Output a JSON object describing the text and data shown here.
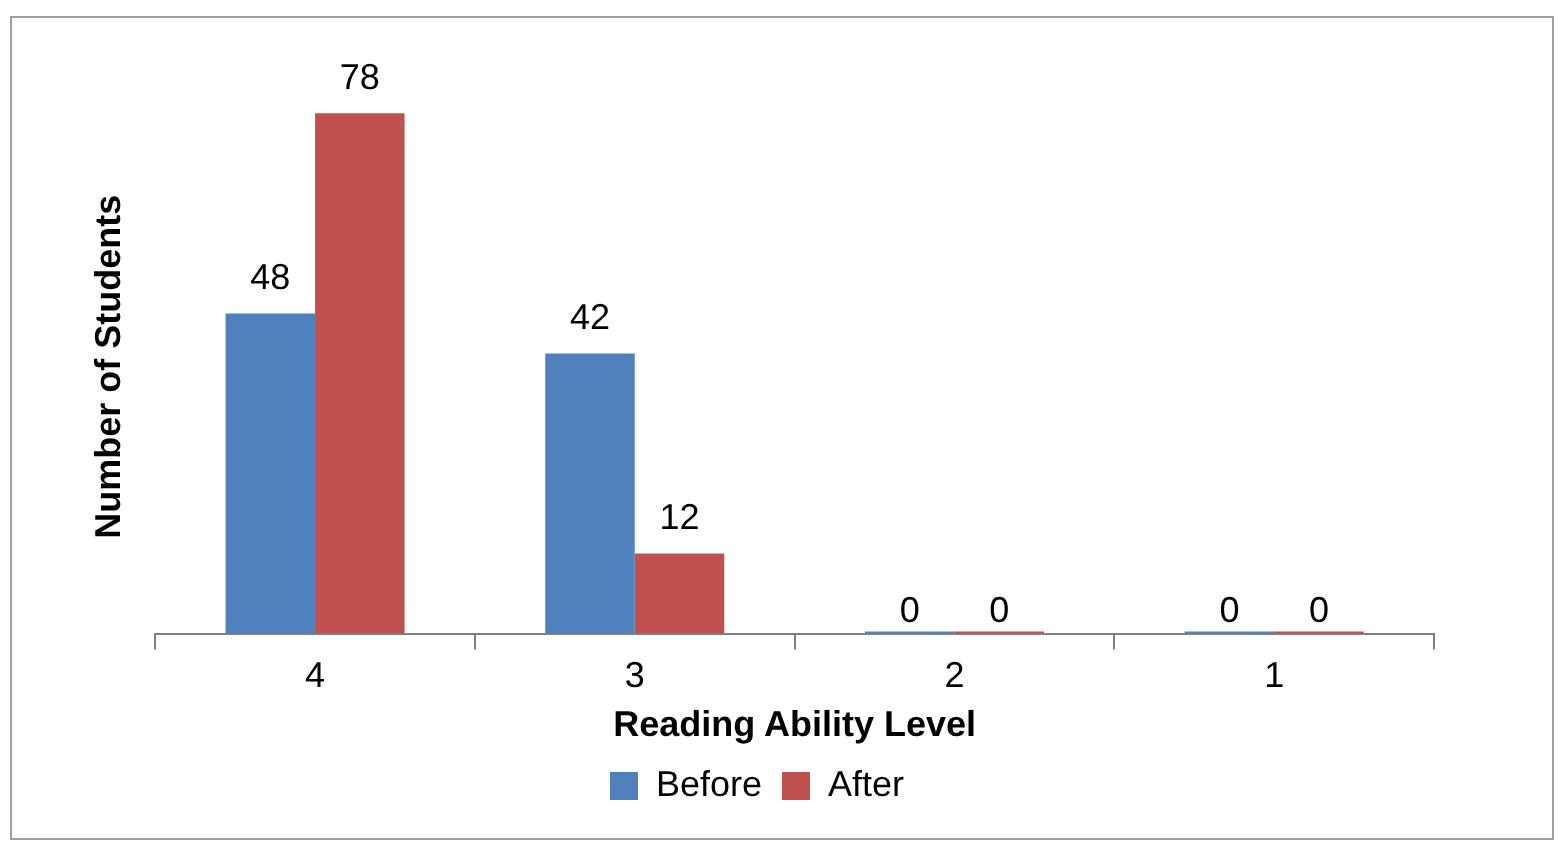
{
  "chart_data": {
    "type": "bar",
    "xlabel": "Reading Ability Level",
    "ylabel": "Number of Students",
    "categories": [
      "4",
      "3",
      "2",
      "1"
    ],
    "series": [
      {
        "name": "Before",
        "color": "#4f81bd",
        "values": [
          48,
          42,
          0,
          0
        ]
      },
      {
        "name": "After",
        "color": "#c0504d",
        "values": [
          78,
          12,
          0,
          0
        ]
      }
    ],
    "data_labels": true,
    "legend": "bottom",
    "grid": false
  }
}
